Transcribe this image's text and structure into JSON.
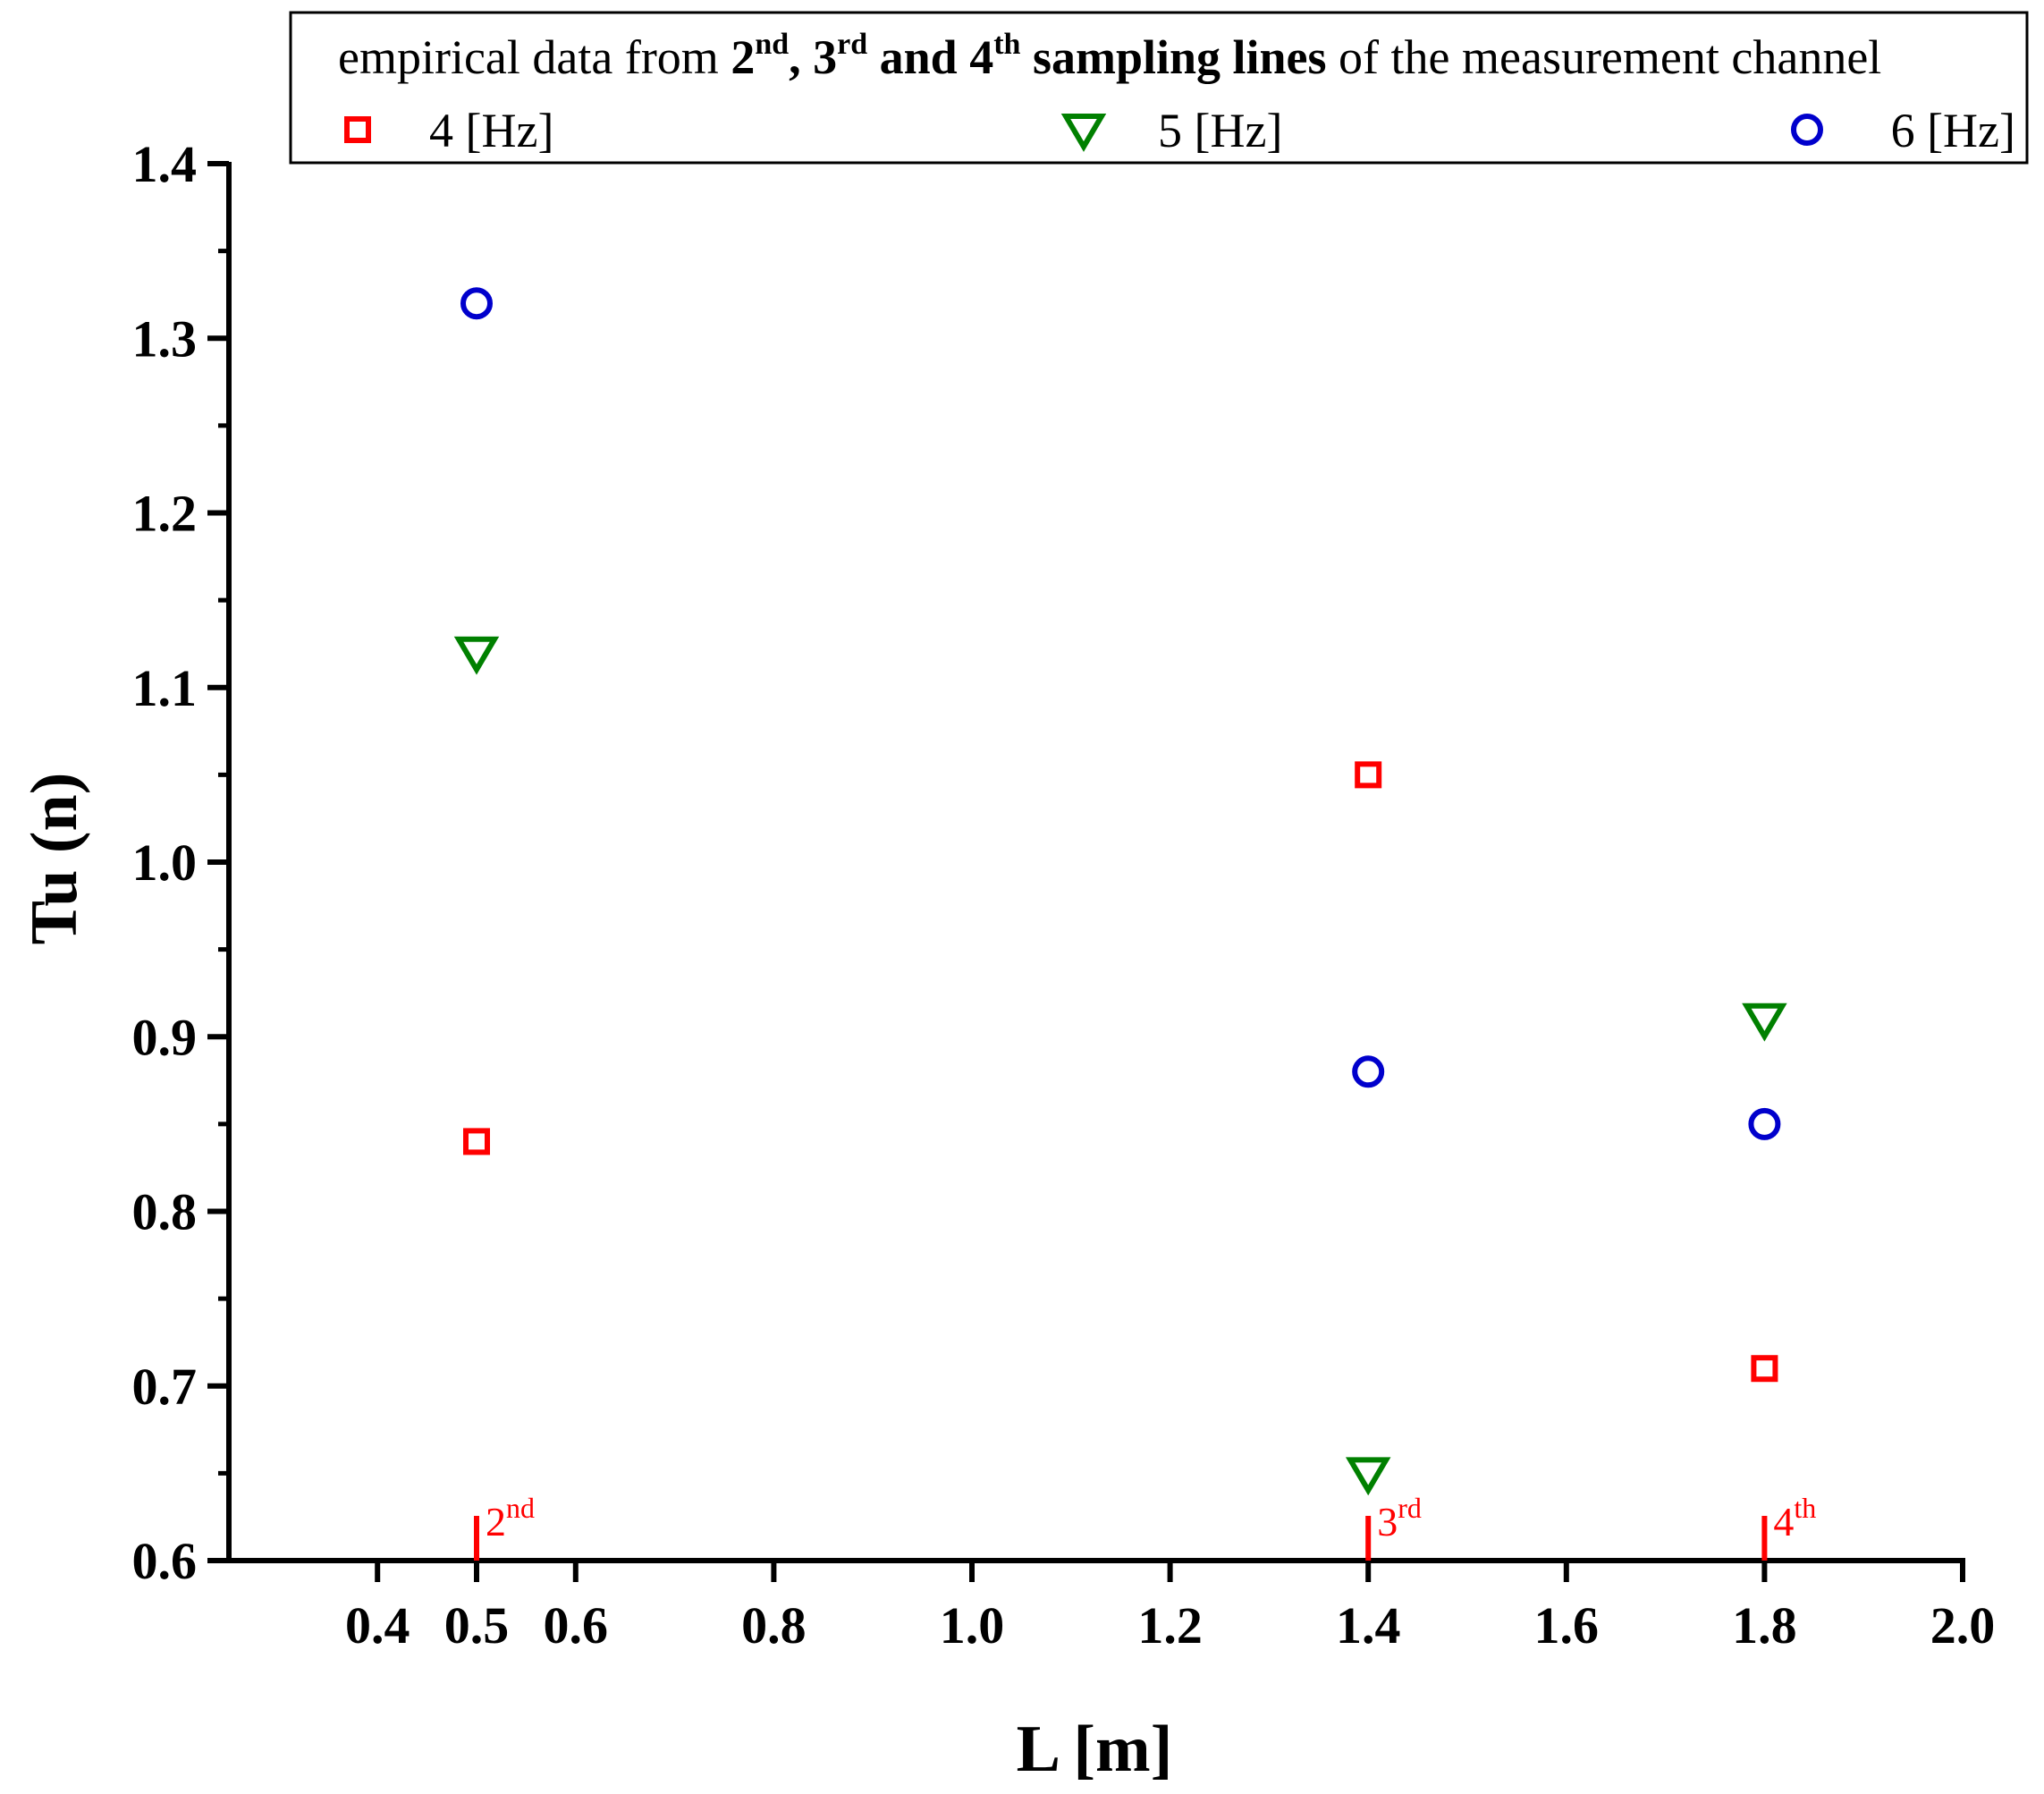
{
  "chart_data": {
    "type": "scatter",
    "title": "",
    "xlabel": "L [m]",
    "ylabel": "Tu (n)",
    "xlim": [
      0.25,
      2.0
    ],
    "ylim": [
      0.6,
      1.4
    ],
    "x_ticks": [
      0.4,
      0.5,
      0.6,
      0.8,
      1.0,
      1.2,
      1.4,
      1.6,
      1.8,
      2.0
    ],
    "x_tick_labels": [
      "0.4",
      "0.5",
      "0.6",
      "0.8",
      "1.0",
      "1.2",
      "1.4",
      "1.6",
      "1.8",
      "2.0"
    ],
    "y_ticks": [
      0.6,
      0.7,
      0.8,
      0.9,
      1.0,
      1.1,
      1.2,
      1.3,
      1.4
    ],
    "y_tick_labels": [
      "0.6",
      "0.7",
      "0.8",
      "0.9",
      "1.0",
      "1.1",
      "1.2",
      "1.3",
      "1.4"
    ],
    "grid": false,
    "legend_position": "top",
    "legend": {
      "title_parts": [
        {
          "text": "empirical data from ",
          "bold": false
        },
        {
          "text": "2",
          "bold": true
        },
        {
          "text": "nd",
          "bold": true,
          "sup": true
        },
        {
          "text": ", 3",
          "bold": true
        },
        {
          "text": "rd",
          "bold": true,
          "sup": true
        },
        {
          "text": " and 4",
          "bold": true
        },
        {
          "text": "th",
          "bold": true,
          "sup": true
        },
        {
          "text": " sampling lines",
          "bold": true
        },
        {
          "text": " of the measurement channel",
          "bold": false
        }
      ]
    },
    "series": [
      {
        "name": "4 [Hz]",
        "marker": "square",
        "color": "#ff0000",
        "x": [
          0.5,
          1.4,
          1.8
        ],
        "y": [
          0.84,
          1.05,
          0.71
        ]
      },
      {
        "name": "5 [Hz]",
        "marker": "triangle-down",
        "color": "#008000",
        "x": [
          0.5,
          1.4,
          1.8
        ],
        "y": [
          1.12,
          0.65,
          0.91
        ]
      },
      {
        "name": "6 [Hz]",
        "marker": "circle",
        "color": "#0000cc",
        "x": [
          0.5,
          1.4,
          1.8
        ],
        "y": [
          1.32,
          0.88,
          0.85
        ]
      }
    ],
    "annotations": [
      {
        "x": 0.5,
        "base": "2",
        "sup": "nd"
      },
      {
        "x": 1.4,
        "base": "3",
        "sup": "rd"
      },
      {
        "x": 1.8,
        "base": "4",
        "sup": "th"
      }
    ]
  }
}
